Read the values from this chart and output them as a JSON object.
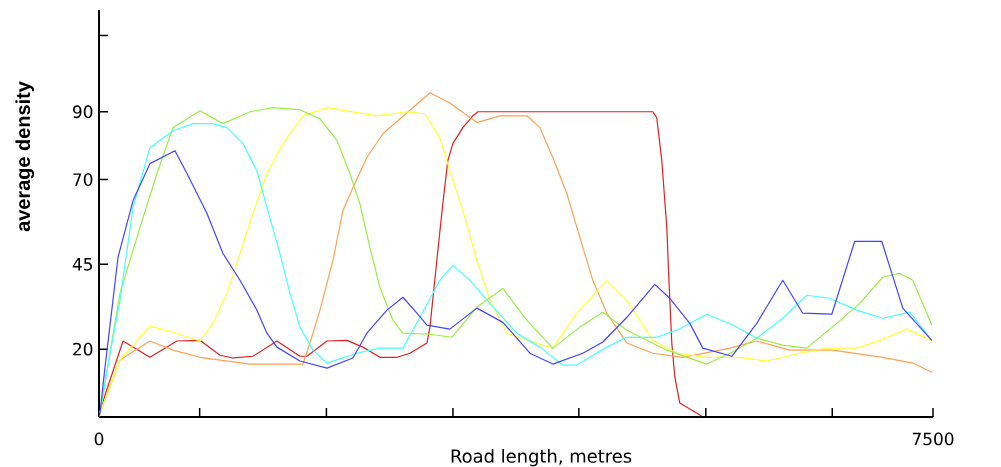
{
  "chart_data": {
    "type": "line",
    "xlabel": "Road length, metres",
    "ylabel": "average density",
    "xlim": [
      0,
      7500
    ],
    "ylim": [
      0,
      120
    ],
    "xticks": [
      0,
      {
        "value": 905,
        "label": null
      },
      {
        "value": 2045,
        "label": null
      },
      {
        "value": 3183,
        "label": null
      },
      {
        "value": 4315,
        "label": null
      },
      {
        "value": 5457,
        "label": null
      },
      {
        "value": 6594,
        "label": null
      },
      7500
    ],
    "yticks": [
      20,
      45,
      70,
      90,
      {
        "value": 112.5,
        "label": null
      }
    ],
    "series": [
      {
        "color": "#e02020",
        "x": [
          0,
          54,
          216,
          458,
          701,
          908,
          1088,
          1205,
          1385,
          1600,
          1807,
          1870,
          2050,
          2230,
          2373,
          2526,
          2679,
          2796,
          2949,
          2976,
          3038,
          3092,
          3137,
          3182,
          3272,
          3362,
          3407,
          4980,
          5016,
          5061,
          5106,
          5124,
          5151,
          5178,
          5223,
          5403,
          5421
        ],
        "values": [
          0,
          6.5,
          22.4,
          17.6,
          22.4,
          22.6,
          18.2,
          17.4,
          17.9,
          22.4,
          17.9,
          17.9,
          22.4,
          22.6,
          20.6,
          17.6,
          17.6,
          18.8,
          21.8,
          26.5,
          46.2,
          62.9,
          75.6,
          80.6,
          85.3,
          88.8,
          90,
          90,
          88.2,
          75.6,
          55.9,
          41.2,
          21.8,
          11.8,
          4.1,
          0.6,
          0.3
        ]
      },
      {
        "color": "#ffa050",
        "x": [
          9,
          189,
          458,
          665,
          908,
          1357,
          1834,
          1897,
          1987,
          2104,
          2194,
          2283,
          2409,
          2553,
          2769,
          2976,
          3155,
          3398,
          3605,
          3848,
          3965,
          4081,
          4207,
          4351,
          4441,
          4567,
          4747,
          4980,
          5250,
          5673,
          5915,
          6212,
          6599,
          7048,
          7318,
          7489
        ],
        "values": [
          1.2,
          16.8,
          22.4,
          19.7,
          17.6,
          15.6,
          15.6,
          21.8,
          31.5,
          46.2,
          60.9,
          67.6,
          76.5,
          83.5,
          89.7,
          95.6,
          92.6,
          86.8,
          88.8,
          88.8,
          85.3,
          76.5,
          65.9,
          50,
          40.3,
          30.6,
          21.8,
          18.8,
          17.6,
          20.3,
          22.4,
          19.7,
          19.7,
          17.6,
          15.9,
          13.2
        ]
      },
      {
        "color": "#ffff30",
        "x": [
          9,
          189,
          458,
          665,
          908,
          1025,
          1151,
          1268,
          1384,
          1510,
          1654,
          1834,
          2050,
          2499,
          2769,
          2931,
          3066,
          3155,
          3272,
          3398,
          3515,
          3668,
          3902,
          4081,
          4297,
          4567,
          4747,
          4980,
          5196,
          5466,
          5763,
          6005,
          6302,
          6545,
          6814,
          7048,
          7264,
          7489
        ],
        "values": [
          1.2,
          16.8,
          26.8,
          25,
          22.4,
          27.6,
          36.5,
          48.2,
          60,
          71.8,
          80.6,
          88.8,
          91.2,
          88.8,
          90,
          89.4,
          82.3,
          72.6,
          60.9,
          46.2,
          34.4,
          24.7,
          22.1,
          20.3,
          30.6,
          40.3,
          34.4,
          22.6,
          18.8,
          17.6,
          17.6,
          16.5,
          18.8,
          20.3,
          20.3,
          22.9,
          25.9,
          22.6
        ]
      },
      {
        "color": "#99ee44",
        "x": [
          9,
          189,
          369,
          521,
          665,
          908,
          1115,
          1357,
          1564,
          1807,
          1987,
          2140,
          2256,
          2346,
          2436,
          2526,
          2643,
          2733,
          2976,
          3173,
          3398,
          3632,
          3848,
          4081,
          4324,
          4531,
          4747,
          5106,
          5466,
          5673,
          5915,
          6149,
          6365,
          6635,
          6841,
          7048,
          7201,
          7318,
          7489
        ],
        "values": [
          1.2,
          36.5,
          55.9,
          71.8,
          85.3,
          90.3,
          86.5,
          90,
          91.2,
          90.6,
          87.9,
          81.5,
          71.8,
          62.9,
          50,
          38.2,
          28.5,
          24.7,
          24.4,
          23.5,
          32.4,
          37.9,
          28.5,
          20.3,
          26.5,
          30.9,
          25.6,
          19.7,
          15.6,
          18.8,
          23.2,
          21.2,
          20.3,
          27.6,
          33.5,
          41.2,
          42.4,
          40.3,
          27.1
        ]
      },
      {
        "color": "#44ffff",
        "x": [
          9,
          99,
          189,
          306,
          458,
          665,
          845,
          1025,
          1151,
          1295,
          1420,
          1510,
          1627,
          1717,
          1807,
          1924,
          2050,
          2319,
          2526,
          2733,
          2886,
          3066,
          3182,
          3335,
          3515,
          3758,
          3965,
          4171,
          4297,
          4567,
          4747,
          5016,
          5196,
          5466,
          5700,
          5915,
          6149,
          6365,
          6572,
          6814,
          7048,
          7291,
          7489
        ],
        "values": [
          1.2,
          18.8,
          34.4,
          61.8,
          79.4,
          84.4,
          86.5,
          86.5,
          85.3,
          80.6,
          72.6,
          61.8,
          48.2,
          36.5,
          26.5,
          19.7,
          15.9,
          18.8,
          20.3,
          20.3,
          29.4,
          40.3,
          44.7,
          40.3,
          33.5,
          24.7,
          20.6,
          15.3,
          15.3,
          20.6,
          23.5,
          23.5,
          25.6,
          30.3,
          27.1,
          23.2,
          29.1,
          35.9,
          35,
          31.5,
          29.1,
          30.9,
          22.6
        ]
      },
      {
        "color": "#4444ff",
        "x": [
          9,
          54,
          99,
          171,
          306,
          458,
          683,
          791,
          971,
          1115,
          1268,
          1420,
          1510,
          1600,
          1807,
          2050,
          2283,
          2409,
          2589,
          2733,
          2859,
          2949,
          3155,
          3398,
          3632,
          3875,
          4081,
          4351,
          4531,
          4747,
          4998,
          5133,
          5313,
          5430,
          5691,
          5915,
          6149,
          6329,
          6590,
          6796,
          7039,
          7228,
          7489
        ],
        "values": [
          1.2,
          14.7,
          27.1,
          47.1,
          63.8,
          74.7,
          78.5,
          71.8,
          60,
          48.2,
          40.3,
          31.5,
          24.7,
          20.6,
          16.5,
          14.4,
          17.4,
          24.7,
          31.5,
          35.3,
          30.6,
          27.1,
          25.9,
          32.1,
          27.9,
          18.8,
          15.6,
          18.8,
          22.1,
          29.4,
          39.1,
          35,
          27.6,
          20.3,
          17.9,
          27.6,
          40.3,
          30.6,
          30.3,
          51.8,
          51.8,
          32.1,
          22.6
        ]
      }
    ]
  }
}
